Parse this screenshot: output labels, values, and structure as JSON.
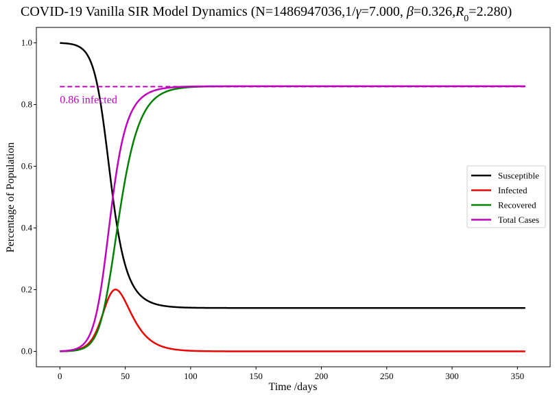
{
  "chart_data": {
    "type": "line",
    "title": {
      "prefix": "COVID-19 Vanilla SIR Model Dynamics (N=1486947036,1/",
      "gamma_symbol": "γ",
      "gamma_value": "=7.000, ",
      "beta_symbol": "β",
      "beta_value": "=0.326,",
      "r0_symbol": "R",
      "r0_subscript": "0",
      "r0_value": "=2.280)"
    },
    "xlabel": "Time /days",
    "ylabel": "Percentage of Population",
    "xlim": [
      -18,
      375
    ],
    "ylim": [
      -0.05,
      1.05
    ],
    "x_ticks": [
      0,
      50,
      100,
      150,
      200,
      250,
      300,
      350
    ],
    "x_tick_labels": [
      "0",
      "50",
      "100",
      "150",
      "200",
      "250",
      "300",
      "350"
    ],
    "y_ticks": [
      0.0,
      0.2,
      0.4,
      0.6,
      0.8,
      1.0
    ],
    "y_tick_labels": [
      "0.0",
      "0.2",
      "0.4",
      "0.6",
      "0.8",
      "1.0"
    ],
    "grid": false,
    "legend_position": "center-right",
    "annotation": {
      "text": "0.86 infected",
      "value": 0.858,
      "x_start": 0,
      "x_end": 356,
      "color": "#bf00bf",
      "linestyle": "dashed"
    },
    "model": {
      "N": 1486947036,
      "beta": 0.326,
      "gamma": 0.142857,
      "I0_fraction": 0.0005,
      "days": 356
    },
    "series": [
      {
        "key": "S",
        "name": "Susceptible",
        "color": "#000000"
      },
      {
        "key": "I",
        "name": "Infected",
        "color": "#ee0000"
      },
      {
        "key": "R",
        "name": "Recovered",
        "color": "#008000"
      },
      {
        "key": "T",
        "name": "Total Cases",
        "color": "#bf00bf"
      }
    ]
  }
}
